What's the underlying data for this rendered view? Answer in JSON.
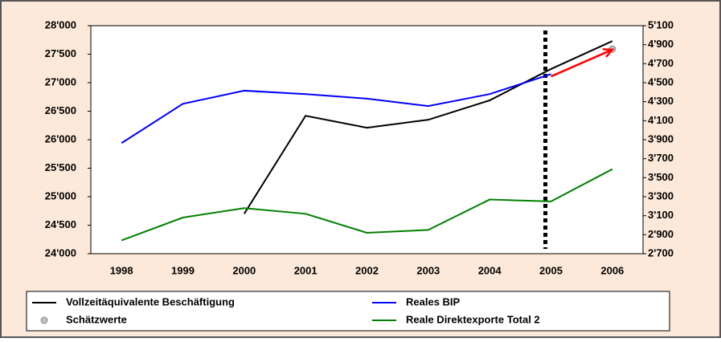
{
  "chart_data": {
    "type": "line",
    "categories": [
      "1998",
      "1999",
      "2000",
      "2001",
      "2002",
      "2003",
      "2004",
      "2005",
      "2006"
    ],
    "series": [
      {
        "name": "Vollzeitäquivalente Beschäftigung",
        "color": "#000000",
        "style": "line",
        "values": [
          null,
          null,
          24700,
          26420,
          26210,
          26350,
          26690,
          27240,
          27730
        ]
      },
      {
        "name": "Reales BIP",
        "color": "#0000ff",
        "style": "line",
        "values": [
          25940,
          26630,
          26860,
          26800,
          26720,
          26590,
          26800,
          27150,
          null
        ]
      },
      {
        "name": "Schätzwerte",
        "color": "#c0c0c0",
        "style": "marker",
        "values": [
          null,
          null,
          null,
          null,
          null,
          null,
          null,
          null,
          27590
        ]
      },
      {
        "name": "Reale Direktexporte Total 2",
        "color": "#008000",
        "style": "line",
        "axis": "y2",
        "values": [
          2840,
          3080,
          3180,
          3120,
          2920,
          2950,
          3270,
          3250,
          3590
        ]
      }
    ],
    "estimate_arrow": {
      "color": "#ff0000",
      "values": [
        null,
        null,
        null,
        null,
        null,
        null,
        null,
        27110,
        27580
      ]
    },
    "vline_category": "2005",
    "ylim": [
      24000,
      28000
    ],
    "yticks": [
      {
        "value": 24000,
        "label": "24'000"
      },
      {
        "value": 24500,
        "label": "24'500"
      },
      {
        "value": 25000,
        "label": "25'000"
      },
      {
        "value": 25500,
        "label": "25'500"
      },
      {
        "value": 26000,
        "label": "26'000"
      },
      {
        "value": 26500,
        "label": "26'500"
      },
      {
        "value": 27000,
        "label": "27'000"
      },
      {
        "value": 27500,
        "label": "27'500"
      },
      {
        "value": 28000,
        "label": "28'000"
      }
    ],
    "y2lim": [
      2700,
      5100
    ],
    "y2ticks": [
      {
        "value": 2700,
        "label": "2'700"
      },
      {
        "value": 2900,
        "label": "2'900"
      },
      {
        "value": 3100,
        "label": "3'100"
      },
      {
        "value": 3300,
        "label": "3'300"
      },
      {
        "value": 3500,
        "label": "3'500"
      },
      {
        "value": 3700,
        "label": "3'700"
      },
      {
        "value": 3900,
        "label": "3'900"
      },
      {
        "value": 4100,
        "label": "4'100"
      },
      {
        "value": 4300,
        "label": "4'300"
      },
      {
        "value": 4500,
        "label": "4'500"
      },
      {
        "value": 4700,
        "label": "4'700"
      },
      {
        "value": 4900,
        "label": "4'900"
      },
      {
        "value": 5100,
        "label": "5'100"
      }
    ],
    "grid": false
  }
}
